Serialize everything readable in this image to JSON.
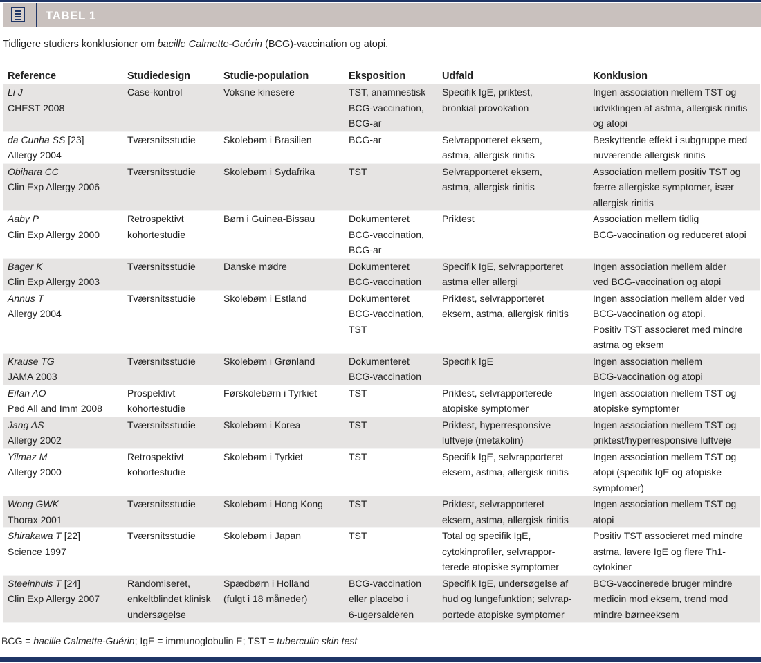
{
  "header": {
    "title": "TABEL 1",
    "icon": "document-list-icon",
    "accent": "#1f3566",
    "band_color": "#c9c1be"
  },
  "caption": {
    "before": "Tidligere studiers konklusioner om ",
    "italic": "bacille Calmette-Guérin",
    "after": " (BCG)-vaccination og atopi."
  },
  "columns": [
    "Reference",
    "Studiedesign",
    "Studie-population",
    "Eksposition",
    "Udfald",
    "Konklusion"
  ],
  "rows": [
    {
      "author": "Li J",
      "ref": "",
      "journal": "CHEST 2008",
      "design": [
        "Case-kontrol"
      ],
      "population": [
        "Voksne kinesere"
      ],
      "exposure": [
        "TST, anamnestisk",
        "BCG-vaccination,",
        "BCG-ar"
      ],
      "outcome": [
        "Specifik IgE, priktest,",
        "bronkial provokation"
      ],
      "conclusion": [
        "Ingen association mellem TST og",
        "udviklingen af astma, allergisk rinitis",
        "og atopi"
      ]
    },
    {
      "author": "da Cunha SS",
      "ref": "[23]",
      "journal": "Allergy 2004",
      "design": [
        "Tværsnitsstudie"
      ],
      "population": [
        "Skolebøm i Brasilien"
      ],
      "exposure": [
        "BCG-ar"
      ],
      "outcome": [
        "Selvrapporteret eksem,",
        "astma, allergisk rinitis"
      ],
      "conclusion": [
        "Beskyttende effekt i subgruppe med",
        "nuværende allergisk rinitis"
      ]
    },
    {
      "author": "Obihara CC",
      "ref": "",
      "journal": "Clin Exp Allergy 2006",
      "design": [
        "Tværsnitsstudie"
      ],
      "population": [
        "Skolebøm i Sydafrika"
      ],
      "exposure": [
        "TST"
      ],
      "outcome": [
        "Selvrapporteret eksem,",
        "astma, allergisk rinitis"
      ],
      "conclusion": [
        "Association mellem positiv TST og",
        "færre allergiske symptomer, især",
        "allergisk rinitis"
      ]
    },
    {
      "author": "Aaby P",
      "ref": "",
      "journal": "Clin Exp Allergy 2000",
      "design": [
        "Retrospektivt",
        "kohortestudie"
      ],
      "population": [
        "Bøm i Guinea-Bissau"
      ],
      "exposure": [
        "Dokumenteret",
        "BCG-vaccination,",
        "BCG-ar"
      ],
      "outcome": [
        "Priktest"
      ],
      "conclusion": [
        "Association mellem tidlig",
        "BCG-vaccination og reduceret atopi"
      ]
    },
    {
      "author": "Bager K",
      "ref": "",
      "journal": "Clin Exp Allergy 2003",
      "design": [
        "Tværsnitsstudie"
      ],
      "population": [
        "Danske mødre"
      ],
      "exposure": [
        "Dokumenteret",
        "BCG-vaccination"
      ],
      "outcome": [
        "Specifik IgE, selvrapporteret",
        "astma eller allergi"
      ],
      "conclusion": [
        "Ingen association mellem alder",
        "ved BCG-vaccination og atopi"
      ]
    },
    {
      "author": "Annus T",
      "ref": "",
      "journal": "Allergy 2004",
      "design": [
        "Tværsnitsstudie"
      ],
      "population": [
        "Skolebøm i Estland"
      ],
      "exposure": [
        "Dokumenteret",
        "BCG-vaccination,",
        "TST"
      ],
      "outcome": [
        "Priktest, selvrapporteret",
        "eksem, astma, allergisk rinitis"
      ],
      "conclusion": [
        "Ingen association mellem alder ved",
        "BCG-vaccination og atopi.",
        "Positiv TST associeret med mindre",
        "astma og eksem"
      ]
    },
    {
      "author": "Krause TG",
      "ref": "",
      "journal": "JAMA 2003",
      "design": [
        "Tværsnitsstudie"
      ],
      "population": [
        "Skolebøm i Grønland"
      ],
      "exposure": [
        "Dokumenteret",
        "BCG-vaccination"
      ],
      "outcome": [
        "Specifik IgE"
      ],
      "conclusion": [
        "Ingen association mellem",
        "BCG-vaccination og atopi"
      ]
    },
    {
      "author": "Eifan AO",
      "ref": "",
      "journal": "Ped All and Imm 2008",
      "design": [
        "Prospektivt",
        "kohortestudie"
      ],
      "population": [
        "Førskolebørn i Tyrkiet"
      ],
      "exposure": [
        "TST"
      ],
      "outcome": [
        "Priktest, selvrapporterede",
        "atopiske symptomer"
      ],
      "conclusion": [
        "Ingen association mellem TST og",
        "atopiske symptomer"
      ]
    },
    {
      "author": "Jang AS",
      "ref": "",
      "journal": "Allergy 2002",
      "design": [
        "Tværsnitsstudie"
      ],
      "population": [
        "Skolebøm i Korea"
      ],
      "exposure": [
        "TST"
      ],
      "outcome": [
        "Priktest, hyperresponsive",
        "luftveje (metakolin)"
      ],
      "conclusion": [
        "Ingen association mellem TST og",
        "priktest/hyperresponsive luftveje"
      ]
    },
    {
      "author": "Yilmaz M",
      "ref": "",
      "journal": "Allergy 2000",
      "design": [
        "Retrospektivt",
        "kohortestudie"
      ],
      "population": [
        "Skolebøm i Tyrkiet"
      ],
      "exposure": [
        "TST"
      ],
      "outcome": [
        "Specifik IgE, selvrapporteret",
        "eksem, astma, allergisk rinitis"
      ],
      "conclusion": [
        "Ingen association mellem TST og",
        "atopi (specifik IgE og atopiske",
        "symptomer)"
      ]
    },
    {
      "author": "Wong GWK",
      "ref": "",
      "journal": "Thorax 2001",
      "design": [
        "Tværsnitsstudie"
      ],
      "population": [
        "Skolebøm i Hong Kong"
      ],
      "exposure": [
        "TST"
      ],
      "outcome": [
        "Priktest, selvrapporteret",
        "eksem, astma, allergisk rinitis"
      ],
      "conclusion": [
        "Ingen association mellem TST og",
        "atopi"
      ]
    },
    {
      "author": "Shirakawa T",
      "ref": "[22]",
      "journal": "Science 1997",
      "design": [
        "Tværsnitsstudie"
      ],
      "population": [
        "Skolebøm i Japan"
      ],
      "exposure": [
        "TST"
      ],
      "outcome": [
        "Total og specifik IgE,",
        "cytokinprofiler, selvrappor-",
        "terede atopiske symptomer"
      ],
      "conclusion": [
        "Positiv TST associeret med mindre",
        "astma, lavere IgE og flere Th1-",
        "cytokiner"
      ]
    },
    {
      "author": "Steeinhuis T",
      "ref": "[24]",
      "journal": "Clin Exp Allergy 2007",
      "design": [
        "Randomiseret,",
        "enkeltblindet klinisk",
        "undersøgelse"
      ],
      "population": [
        "Spædbørn i Holland",
        "(fulgt i 18 måneder)"
      ],
      "exposure": [
        "BCG-vaccination",
        "eller placebo i",
        "6-ugersalderen"
      ],
      "outcome": [
        "Specifik IgE, undersøgelse af",
        "hud og lungefunktion; selvrap-",
        "portede atopiske symptomer"
      ],
      "conclusion": [
        "BCG-vaccinerede bruger mindre",
        "medicin mod eksem, trend mod",
        "mindre børneeksem"
      ]
    }
  ],
  "footnote": {
    "a": "BCG = ",
    "a_it": "bacille Calmette-Guérin",
    "b": ";  IgE = immunoglobulin E;  TST = ",
    "b_it": "tuberculin skin test"
  }
}
